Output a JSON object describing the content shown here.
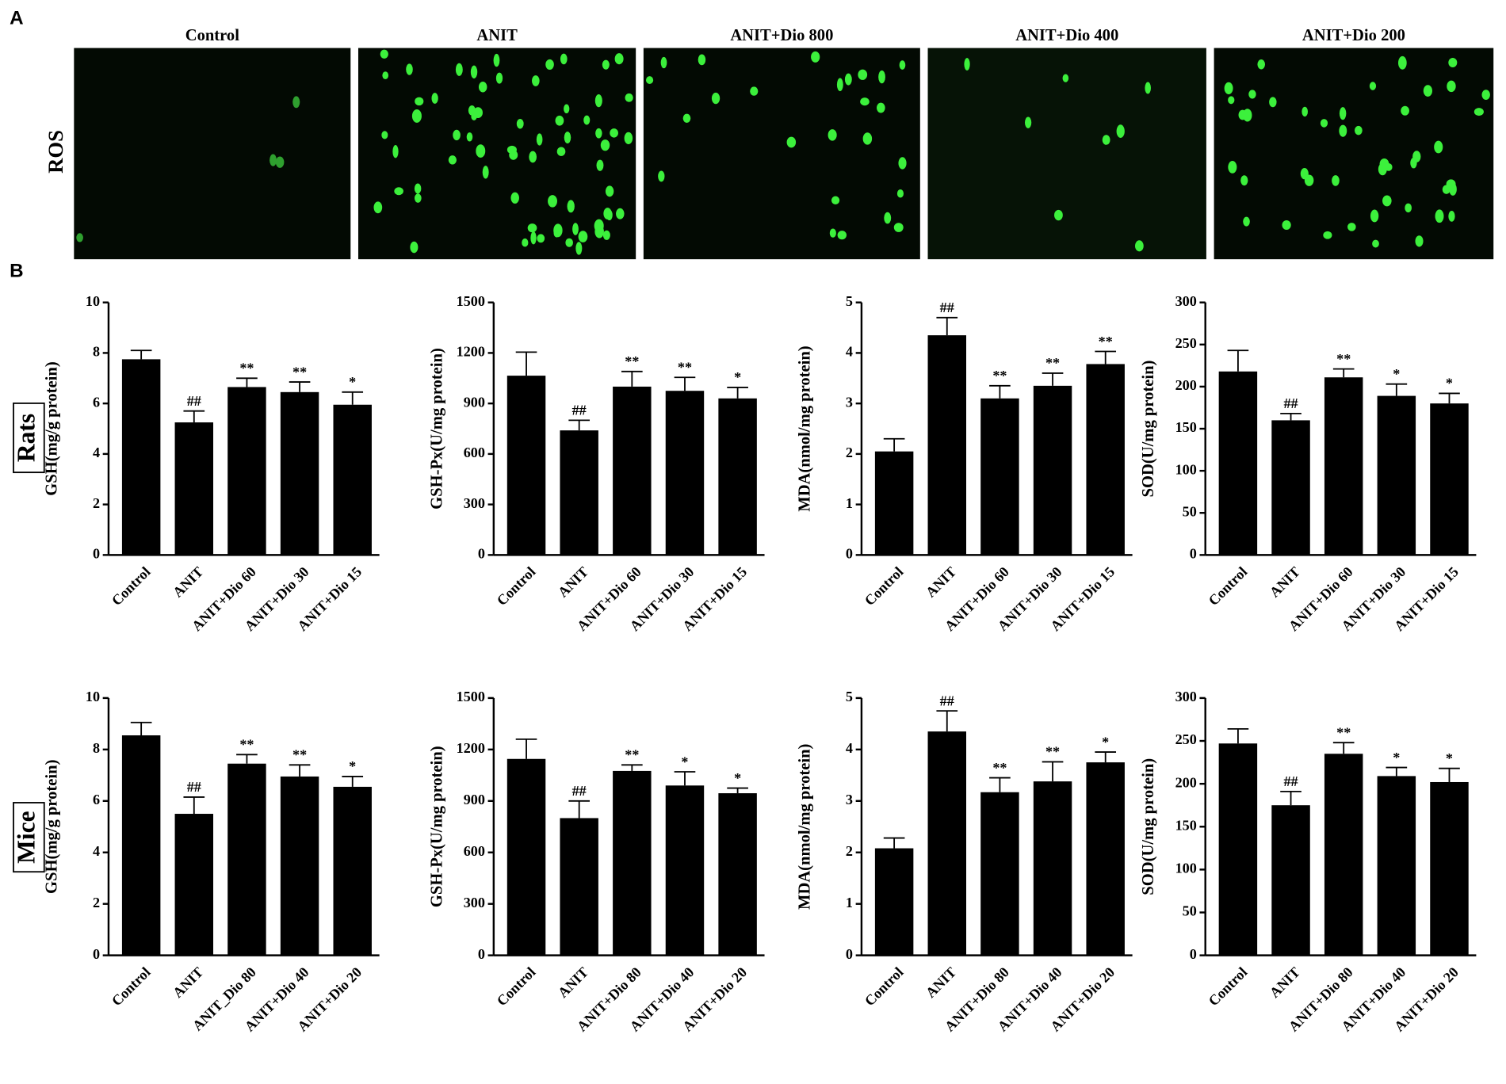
{
  "panel_labels": [
    "A",
    "B"
  ],
  "panel_a": {
    "row_label": "ROS",
    "columns": [
      "Control",
      "ANIT",
      "ANIT+Dio 800",
      "ANIT+Dio 400",
      "ANIT+Dio 200"
    ]
  },
  "species": [
    "Rats",
    "Mice"
  ],
  "chart_data": [
    {
      "type": "bar",
      "ylabel": "GSH(mg/g protein)",
      "categories": [
        "Control",
        "ANIT",
        "ANIT+Dio 60",
        "ANIT+Dio 30",
        "ANIT+Dio 15"
      ],
      "values": [
        7.75,
        5.25,
        6.65,
        6.45,
        5.95
      ],
      "errors": [
        0.35,
        0.45,
        0.35,
        0.4,
        0.5
      ],
      "significance": [
        null,
        "##",
        "**",
        "**",
        "*"
      ],
      "color": "#000000",
      "ylim": [
        0,
        10
      ],
      "yticks": [
        0,
        2,
        4,
        6,
        8,
        10
      ]
    },
    {
      "type": "bar",
      "ylabel": "GSH-Px(U/mg protein)",
      "categories": [
        "Control",
        "ANIT",
        "ANIT+Dio 60",
        "ANIT+Dio 30",
        "ANIT+Dio 15"
      ],
      "values": [
        1065,
        740,
        1000,
        975,
        930
      ],
      "errors": [
        140,
        60,
        90,
        80,
        65
      ],
      "significance": [
        null,
        "##",
        "**",
        "**",
        "*"
      ],
      "color": "#000000",
      "ylim": [
        0,
        1500
      ],
      "yticks": [
        0,
        300,
        600,
        900,
        1200,
        1500
      ]
    },
    {
      "type": "bar",
      "ylabel": "MDA(nmol/mg protein)",
      "categories": [
        "Control",
        "ANIT",
        "ANIT+Dio 60",
        "ANIT+Dio 30",
        "ANIT+Dio 15"
      ],
      "values": [
        2.05,
        4.35,
        3.1,
        3.35,
        3.78
      ],
      "errors": [
        0.25,
        0.35,
        0.25,
        0.25,
        0.25
      ],
      "significance": [
        null,
        "##",
        "**",
        "**",
        "**"
      ],
      "color": "#000000",
      "ylim": [
        0,
        5
      ],
      "yticks": [
        0,
        1,
        2,
        3,
        4,
        5
      ]
    },
    {
      "type": "bar",
      "ylabel": "SOD(U/mg protein)",
      "categories": [
        "Control",
        "ANIT",
        "ANIT+Dio 60",
        "ANIT+Dio 30",
        "ANIT+Dio 15"
      ],
      "values": [
        218,
        160,
        211,
        189,
        180
      ],
      "errors": [
        25,
        8,
        10,
        14,
        12
      ],
      "significance": [
        null,
        "##",
        "**",
        "*",
        "*"
      ],
      "color": "#000000",
      "ylim": [
        0,
        300
      ],
      "yticks": [
        0,
        50,
        100,
        150,
        200,
        250,
        300
      ]
    },
    {
      "type": "bar",
      "ylabel": "GSH(mg/g protein)",
      "categories": [
        "Control",
        "ANIT",
        "ANIT_Dio 80",
        "ANIT+Dio 40",
        "ANIT+Dio 20"
      ],
      "values": [
        8.55,
        5.5,
        7.45,
        6.95,
        6.55
      ],
      "errors": [
        0.5,
        0.65,
        0.35,
        0.45,
        0.4
      ],
      "significance": [
        null,
        "##",
        "**",
        "**",
        "*"
      ],
      "color": "#000000",
      "ylim": [
        0,
        10
      ],
      "yticks": [
        0,
        2,
        4,
        6,
        8,
        10
      ]
    },
    {
      "type": "bar",
      "ylabel": "GSH-Px(U/mg protein)",
      "categories": [
        "Control",
        "ANIT",
        "ANIT+Dio 80",
        "ANIT+Dio 40",
        "ANIT+Dio 20"
      ],
      "values": [
        1145,
        800,
        1075,
        990,
        945
      ],
      "errors": [
        115,
        100,
        35,
        80,
        30
      ],
      "significance": [
        null,
        "##",
        "**",
        "*",
        "*"
      ],
      "color": "#000000",
      "ylim": [
        0,
        1500
      ],
      "yticks": [
        0,
        300,
        600,
        900,
        1200,
        1500
      ]
    },
    {
      "type": "bar",
      "ylabel": "MDA(nmol/mg protein)",
      "categories": [
        "Control",
        "ANIT",
        "ANIT+Dio 80",
        "ANIT+Dio 40",
        "ANIT+Dio 20"
      ],
      "values": [
        2.08,
        4.35,
        3.17,
        3.38,
        3.75
      ],
      "errors": [
        0.2,
        0.4,
        0.28,
        0.38,
        0.2
      ],
      "significance": [
        null,
        "##",
        "**",
        "**",
        "*"
      ],
      "color": "#000000",
      "ylim": [
        0,
        5
      ],
      "yticks": [
        0,
        1,
        2,
        3,
        4,
        5
      ]
    },
    {
      "type": "bar",
      "ylabel": "SOD(U/mg protein)",
      "categories": [
        "Control",
        "ANIT",
        "ANIT+Dio 80",
        "ANIT+Dio 40",
        "ANIT+Dio 20"
      ],
      "values": [
        247,
        175,
        235,
        209,
        202
      ],
      "errors": [
        17,
        16,
        13,
        10,
        16
      ],
      "significance": [
        null,
        "##",
        "**",
        "*",
        "*"
      ],
      "color": "#000000",
      "ylim": [
        0,
        300
      ],
      "yticks": [
        0,
        50,
        100,
        150,
        200,
        250,
        300
      ]
    }
  ]
}
